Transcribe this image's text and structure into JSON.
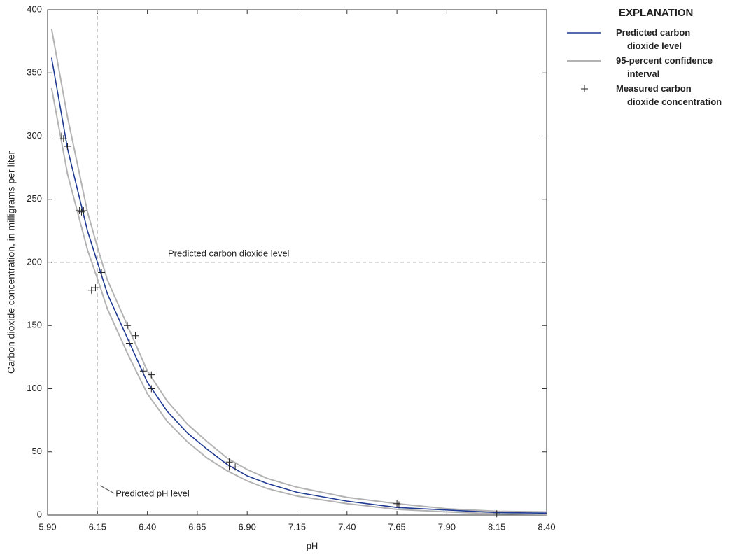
{
  "chart_data": {
    "type": "line",
    "xlabel": "pH",
    "ylabel": "Carbon dioxide concentration, in milligrams per liter",
    "legend_title": "EXPLANATION",
    "legend": "right",
    "x": [
      5.92,
      6.0,
      6.1,
      6.15,
      6.2,
      6.3,
      6.4,
      6.5,
      6.6,
      6.7,
      6.8,
      6.9,
      7.0,
      7.15,
      7.4,
      7.65,
      7.9,
      8.15,
      8.4
    ],
    "series": [
      {
        "name": "Predicted carbon dioxide level",
        "type": "line",
        "color": "#1f3a93",
        "values": [
          362,
          290,
          225,
          200,
          175,
          140,
          105,
          82,
          65,
          52,
          40,
          31,
          25,
          18,
          11,
          6,
          4,
          2,
          1.5
        ]
      },
      {
        "name": "95-percent confidence interval",
        "type": "band",
        "color": "#b3b3b3",
        "upper": [
          385,
          315,
          240,
          212,
          186,
          150,
          114,
          90,
          72,
          58,
          45,
          36,
          29,
          22,
          14,
          9,
          5,
          3,
          2.5
        ],
        "lower": [
          338,
          270,
          210,
          187,
          163,
          128,
          96,
          74,
          58,
          45,
          35,
          27,
          21,
          15,
          9,
          4.5,
          2.5,
          1,
          0.5
        ]
      },
      {
        "name": "Measured carbon dioxide concentration",
        "type": "scatter",
        "color": "#222222",
        "x": [
          5.97,
          5.98,
          6.0,
          6.06,
          6.07,
          6.08,
          6.12,
          6.14,
          6.17,
          6.3,
          6.31,
          6.34,
          6.38,
          6.42,
          6.42,
          6.81,
          6.81,
          6.84,
          7.65,
          7.66,
          8.15
        ],
        "values": [
          300,
          298,
          292,
          241,
          240,
          241,
          178,
          180,
          192,
          150,
          136,
          142,
          114,
          111,
          100,
          42,
          38,
          38,
          9,
          8,
          1
        ]
      }
    ],
    "annotations": [
      {
        "text": "Predicted carbon dioxide level",
        "y": 200
      },
      {
        "text": "Predicted pH level",
        "x": 6.15
      }
    ],
    "xlim": [
      5.9,
      8.4
    ],
    "xticks": [
      {
        "value": 5.9,
        "label": "5.90"
      },
      6.15,
      {
        "value": 6.4,
        "label": "6.40"
      },
      6.65,
      {
        "value": 6.9,
        "label": "6.90"
      },
      7.15,
      {
        "value": 7.4,
        "label": "7.40"
      },
      7.65,
      {
        "value": 7.9,
        "label": "7.90"
      },
      8.15,
      {
        "value": 8.4,
        "label": "8.40"
      }
    ],
    "ylim": [
      0,
      400
    ],
    "yticks": [
      0,
      50,
      100,
      150,
      200,
      250,
      300,
      350,
      400
    ],
    "grid": false
  }
}
